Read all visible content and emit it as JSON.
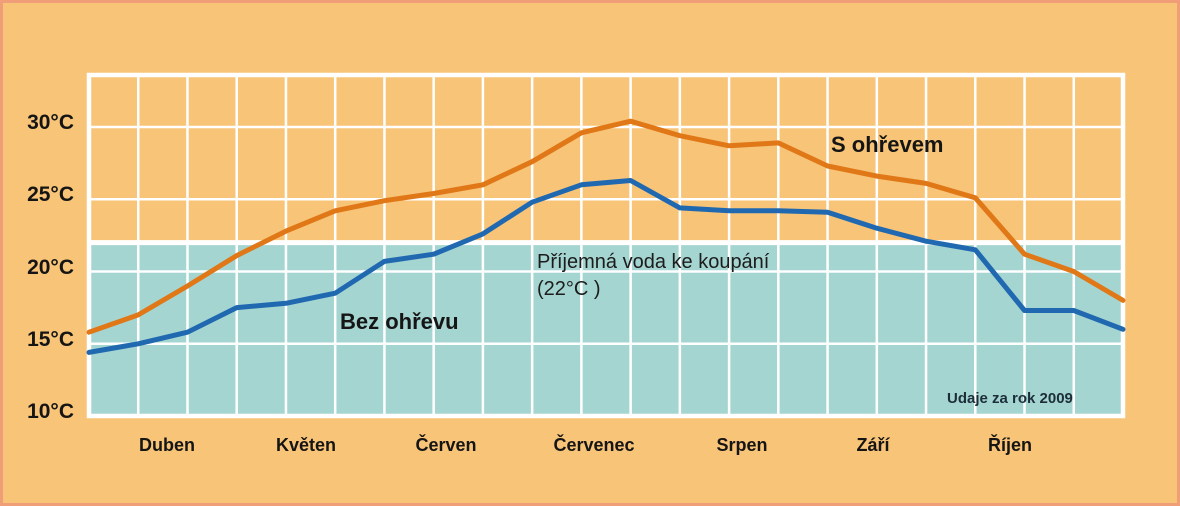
{
  "page": {
    "background_color": "#f8c478",
    "border_color": "#ef9e78"
  },
  "chart_data": {
    "type": "line",
    "title": "",
    "xlabel": "",
    "ylabel": "",
    "x_categories": [
      "Duben",
      "Květen",
      "Červen",
      "Červenec",
      "Srpen",
      "Září",
      "Říjen"
    ],
    "points_per_month": 3,
    "y_axis": {
      "tick_values": [
        30,
        25,
        20,
        15,
        10
      ],
      "tick_suffix": "°C",
      "ylim": [
        10,
        33.6
      ]
    },
    "grid": {
      "show": true,
      "color": "#ffffff",
      "vertical_columns": 21
    },
    "comfort_zone": {
      "max_temp": 22,
      "fill": "#a5d5d1",
      "label_line1": "Příjemná voda ke koupání",
      "label_line2": "(22°C )"
    },
    "series": [
      {
        "name": "S ohřevem",
        "color": "#e07818",
        "values": [
          15.8,
          17.0,
          19.0,
          21.1,
          22.8,
          24.2,
          24.9,
          25.4,
          26.0,
          27.6,
          29.6,
          30.4,
          29.4,
          28.7,
          28.9,
          27.3,
          26.6,
          26.1,
          25.1,
          21.2,
          20.0,
          18.0
        ]
      },
      {
        "name": "Bez ohřevu",
        "color": "#2069b1",
        "values": [
          14.4,
          15.0,
          15.8,
          17.5,
          17.8,
          18.5,
          20.7,
          21.2,
          22.6,
          24.8,
          26.0,
          26.3,
          24.4,
          24.2,
          24.2,
          24.1,
          23.0,
          22.1,
          21.5,
          17.3,
          17.3,
          16.0
        ]
      }
    ],
    "source_note": "Udaje za rok 2009",
    "legend_position": "inline-annotations"
  }
}
